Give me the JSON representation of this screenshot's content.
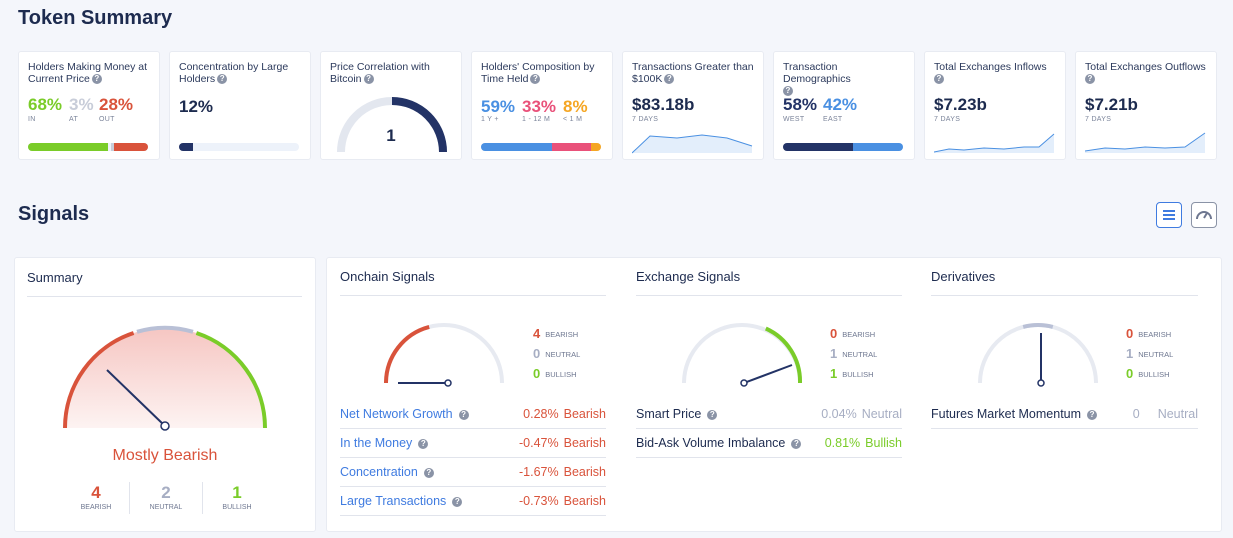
{
  "token_summary": {
    "title": "Token Summary",
    "cards": [
      {
        "title": "Holders Making Money at Current Price",
        "values": [
          {
            "v": "68%",
            "label": "IN",
            "color": "#7acc29"
          },
          {
            "v": "3%",
            "label": "AT",
            "color": "#c8cdd9"
          },
          {
            "v": "28%",
            "label": "OUT",
            "color": "#d9533b"
          }
        ]
      },
      {
        "title": "Concentration by Large Holders",
        "value": "12%",
        "bar_fraction": 0.12
      },
      {
        "title": "Price Correlation with Bitcoin",
        "value": "1"
      },
      {
        "title": "Holders' Composition by Time Held",
        "values": [
          {
            "v": "59%",
            "label": "1 Y +",
            "color": "#4a90e2"
          },
          {
            "v": "33%",
            "label": "1 - 12 M",
            "color": "#e9517a"
          },
          {
            "v": "8%",
            "label": "< 1 M",
            "color": "#f5a623"
          }
        ]
      },
      {
        "title": "Transactions Greater than $100K",
        "value": "$83.18b",
        "sub": "7 DAYS"
      },
      {
        "title": "Transaction Demographics",
        "values": [
          {
            "v": "58%",
            "label": "WEST",
            "color": "#233366"
          },
          {
            "v": "42%",
            "label": "EAST",
            "color": "#4a90e2"
          }
        ]
      },
      {
        "title": "Total Exchanges Inflows",
        "value": "$7.23b",
        "sub": "7 DAYS"
      },
      {
        "title": "Total Exchanges Outflows",
        "value": "$7.21b",
        "sub": "7 DAYS"
      }
    ]
  },
  "signals": {
    "title": "Signals",
    "summary": {
      "title": "Summary",
      "verdict": "Mostly Bearish",
      "counts": [
        {
          "v": "4",
          "label": "BEARISH",
          "color": "#d9533b"
        },
        {
          "v": "2",
          "label": "NEUTRAL",
          "color": "#a7aec3"
        },
        {
          "v": "1",
          "label": "BULLISH",
          "color": "#7acc29"
        }
      ]
    },
    "onchain": {
      "title": "Onchain Signals",
      "counts": {
        "bearish": "4",
        "neutral": "0",
        "bullish": "0"
      },
      "rows": [
        {
          "name": "Net Network Growth",
          "pct": "0.28%",
          "verdict": "Bearish"
        },
        {
          "name": "In the Money",
          "pct": "-0.47%",
          "verdict": "Bearish"
        },
        {
          "name": "Concentration",
          "pct": "-1.67%",
          "verdict": "Bearish"
        },
        {
          "name": "Large Transactions",
          "pct": "-0.73%",
          "verdict": "Bearish"
        }
      ]
    },
    "exchange": {
      "title": "Exchange Signals",
      "counts": {
        "bearish": "0",
        "neutral": "1",
        "bullish": "1"
      },
      "rows": [
        {
          "name": "Smart Price",
          "pct": "0.04%",
          "verdict": "Neutral"
        },
        {
          "name": "Bid-Ask Volume Imbalance",
          "pct": "0.81%",
          "verdict": "Bullish"
        }
      ]
    },
    "derivatives": {
      "title": "Derivatives",
      "counts": {
        "bearish": "0",
        "neutral": "1",
        "bullish": "0"
      },
      "rows": [
        {
          "name": "Futures Market Momentum",
          "pct": "0",
          "verdict": "Neutral"
        }
      ]
    },
    "legend_labels": {
      "bearish": "BEARISH",
      "neutral": "NEUTRAL",
      "bullish": "BULLISH"
    }
  },
  "colors": {
    "bearish": "#d9533b",
    "neutral": "#a7aec3",
    "bullish": "#7acc29",
    "navy": "#233366",
    "blue": "#3f7be0"
  },
  "icons": {
    "list_view": "list-icon",
    "gauge_view": "gauge-icon",
    "help": "question-icon"
  }
}
